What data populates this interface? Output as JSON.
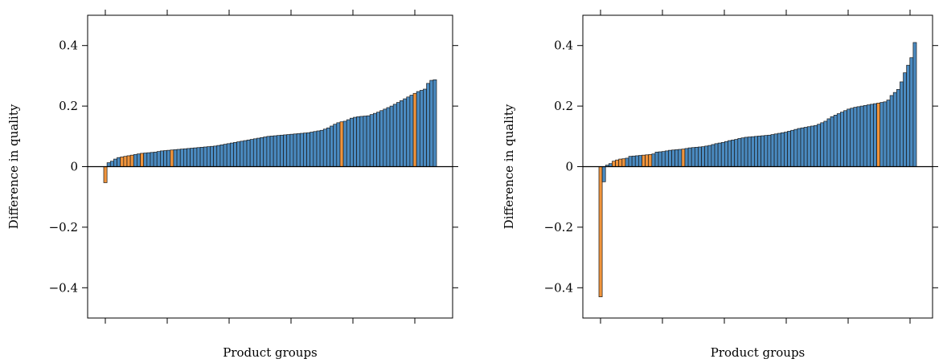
{
  "colors": {
    "blue": "#4a8ac0",
    "orange": "#f0943c",
    "outline": "#1a1a1a",
    "axis": "#000000"
  },
  "chart_data": [
    {
      "type": "bar",
      "title": "",
      "xlabel": "Product groups",
      "ylabel": "Difference in quality",
      "ylim": [
        -0.5,
        0.5
      ],
      "yticks": [
        -0.4,
        -0.2,
        0,
        0.2,
        0.4
      ],
      "ytick_labels": [
        "−0.4",
        "−0.2",
        "0",
        "0.2",
        "0.4"
      ],
      "grid": false,
      "series": [
        {
          "values": [
            -0.053,
            0.013,
            0.018,
            0.025,
            0.03,
            0.032,
            0.034,
            0.036,
            0.038,
            0.04,
            0.042,
            0.044,
            0.045,
            0.046,
            0.047,
            0.048,
            0.05,
            0.052,
            0.053,
            0.054,
            0.055,
            0.056,
            0.057,
            0.058,
            0.059,
            0.06,
            0.061,
            0.062,
            0.063,
            0.064,
            0.065,
            0.066,
            0.067,
            0.068,
            0.07,
            0.072,
            0.074,
            0.076,
            0.078,
            0.08,
            0.082,
            0.084,
            0.086,
            0.088,
            0.09,
            0.092,
            0.094,
            0.096,
            0.098,
            0.1,
            0.101,
            0.102,
            0.103,
            0.104,
            0.105,
            0.106,
            0.107,
            0.108,
            0.109,
            0.11,
            0.111,
            0.112,
            0.114,
            0.116,
            0.118,
            0.12,
            0.124,
            0.128,
            0.134,
            0.14,
            0.145,
            0.148,
            0.15,
            0.155,
            0.16,
            0.163,
            0.165,
            0.166,
            0.167,
            0.168,
            0.172,
            0.176,
            0.18,
            0.185,
            0.19,
            0.195,
            0.2,
            0.206,
            0.212,
            0.218,
            0.224,
            0.23,
            0.236,
            0.242,
            0.248,
            0.252,
            0.256,
            0.275,
            0.285,
            0.287
          ],
          "highlight": [
            0,
            5,
            6,
            7,
            8,
            11,
            20,
            71,
            93
          ]
        }
      ]
    },
    {
      "type": "bar",
      "title": "",
      "xlabel": "Product groups",
      "ylabel": "Difference in quality",
      "ylim": [
        -0.5,
        0.5
      ],
      "yticks": [
        -0.4,
        -0.2,
        0,
        0.2,
        0.4
      ],
      "ytick_labels": [
        "−0.4",
        "−0.2",
        "0",
        "0.2",
        "0.4"
      ],
      "grid": false,
      "series": [
        {
          "values": [
            -0.43,
            -0.05,
            0.005,
            0.01,
            0.018,
            0.022,
            0.025,
            0.026,
            0.028,
            0.034,
            0.035,
            0.036,
            0.037,
            0.038,
            0.039,
            0.04,
            0.042,
            0.048,
            0.049,
            0.05,
            0.052,
            0.054,
            0.055,
            0.056,
            0.057,
            0.058,
            0.06,
            0.062,
            0.063,
            0.064,
            0.065,
            0.066,
            0.068,
            0.07,
            0.073,
            0.076,
            0.078,
            0.08,
            0.083,
            0.086,
            0.088,
            0.09,
            0.093,
            0.095,
            0.097,
            0.098,
            0.099,
            0.1,
            0.101,
            0.102,
            0.103,
            0.104,
            0.106,
            0.108,
            0.11,
            0.112,
            0.114,
            0.117,
            0.12,
            0.123,
            0.126,
            0.128,
            0.13,
            0.132,
            0.134,
            0.136,
            0.14,
            0.145,
            0.15,
            0.158,
            0.165,
            0.17,
            0.175,
            0.18,
            0.185,
            0.19,
            0.193,
            0.196,
            0.198,
            0.2,
            0.202,
            0.204,
            0.206,
            0.208,
            0.21,
            0.212,
            0.214,
            0.22,
            0.235,
            0.245,
            0.255,
            0.28,
            0.31,
            0.335,
            0.36,
            0.41
          ],
          "highlight": [
            0,
            4,
            5,
            6,
            7,
            13,
            14,
            15,
            25,
            84
          ]
        }
      ]
    }
  ]
}
